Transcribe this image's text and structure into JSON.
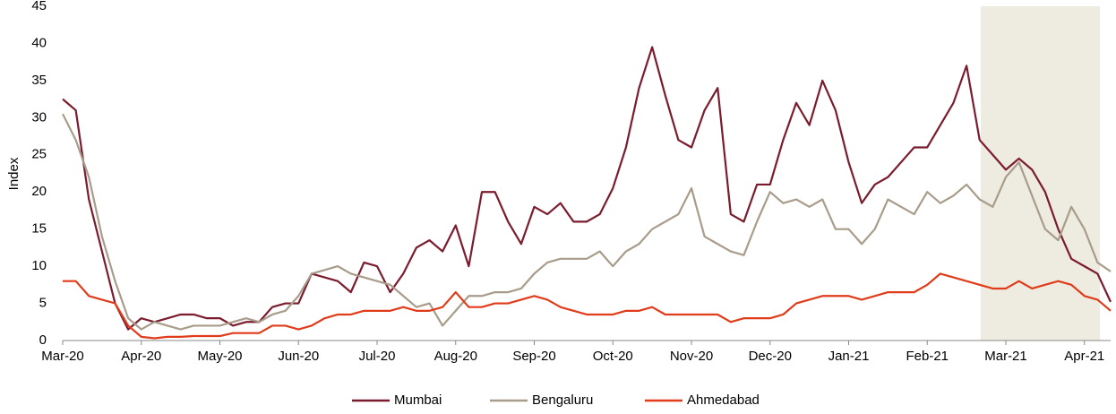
{
  "chart_data": {
    "type": "line",
    "y_label": "Index",
    "categories": [
      "Mar-20",
      null,
      null,
      null,
      null,
      null,
      "Apr-20",
      null,
      null,
      null,
      null,
      null,
      "May-20",
      null,
      null,
      null,
      null,
      null,
      "Jun-20",
      null,
      null,
      null,
      null,
      null,
      "Jul-20",
      null,
      null,
      null,
      null,
      null,
      "Aug-20",
      null,
      null,
      null,
      null,
      null,
      "Sep-20",
      null,
      null,
      null,
      null,
      null,
      "Oct-20",
      null,
      null,
      null,
      null,
      null,
      "Nov-20",
      null,
      null,
      null,
      null,
      null,
      "Dec-20",
      null,
      null,
      null,
      null,
      null,
      "Jan-21",
      null,
      null,
      null,
      null,
      null,
      "Feb-21",
      null,
      null,
      null,
      null,
      null,
      "Mar-21",
      null,
      null,
      null,
      null,
      null,
      "Apr-21",
      null,
      null
    ],
    "series": [
      {
        "name": "Mumbai",
        "color": "#7b1c2e",
        "values": [
          32.5,
          31,
          19,
          12,
          5,
          1.5,
          3,
          2.5,
          3,
          3.5,
          3.5,
          3,
          3,
          2,
          2.5,
          2.5,
          4.5,
          5,
          5,
          9,
          8.5,
          8,
          6.5,
          10.5,
          10,
          6.5,
          9,
          12.5,
          13.5,
          12,
          15.5,
          10,
          20,
          20,
          16,
          13,
          18,
          17,
          18.5,
          16,
          16,
          17,
          20.5,
          26,
          34,
          39.5,
          33,
          27,
          26,
          31,
          34,
          17,
          16,
          21,
          21,
          27,
          32,
          29,
          35,
          31,
          24,
          18.5,
          21,
          22,
          24,
          26,
          26,
          29,
          32,
          37,
          27,
          25,
          23,
          24.5,
          23,
          20,
          15,
          11,
          10,
          9,
          5.2
        ]
      },
      {
        "name": "Bengaluru",
        "color": "#a89c8a",
        "values": [
          30.5,
          27,
          22,
          14,
          8,
          3,
          1.5,
          2.5,
          2,
          1.5,
          2,
          2,
          2,
          2.5,
          3,
          2.5,
          3.5,
          4,
          6,
          9,
          9.5,
          10,
          9,
          8.5,
          8,
          7.5,
          6,
          4.5,
          5,
          2,
          4,
          6,
          6,
          6.5,
          6.5,
          7,
          9,
          10.5,
          11,
          11,
          11,
          12,
          10,
          12,
          13,
          15,
          16,
          17,
          20.5,
          14,
          13,
          12,
          11.5,
          16,
          20,
          18.5,
          19,
          18,
          19,
          15,
          15,
          13,
          15,
          19,
          18,
          17,
          20,
          18.5,
          19.5,
          21,
          19,
          18,
          22,
          24,
          19.5,
          15,
          13.5,
          18,
          15,
          10.5,
          9.3
        ]
      },
      {
        "name": "Ahmedabad",
        "color": "#e03c1a",
        "values": [
          8,
          8,
          6,
          5.5,
          5,
          2,
          0.5,
          0.3,
          0.5,
          0.5,
          0.6,
          0.6,
          0.6,
          1,
          1,
          1,
          2,
          2,
          1.5,
          2,
          3,
          3.5,
          3.5,
          4,
          4,
          4,
          4.5,
          4,
          4,
          4.5,
          6.5,
          4.5,
          4.5,
          5,
          5,
          5.5,
          6,
          5.5,
          4.5,
          4,
          3.5,
          3.5,
          3.5,
          4,
          4,
          4.5,
          3.5,
          3.5,
          3.5,
          3.5,
          3.5,
          2.5,
          3,
          3,
          3,
          3.5,
          5,
          5.5,
          6,
          6,
          6,
          5.5,
          6,
          6.5,
          6.5,
          6.5,
          7.5,
          9,
          8.5,
          8,
          7.5,
          7,
          7,
          8,
          7,
          7.5,
          8,
          7.5,
          6,
          5.5,
          4
        ]
      }
    ],
    "ylim": [
      0,
      45
    ],
    "yticks": [
      0,
      5,
      10,
      15,
      20,
      25,
      30,
      35,
      40,
      45
    ],
    "grid": false
  }
}
